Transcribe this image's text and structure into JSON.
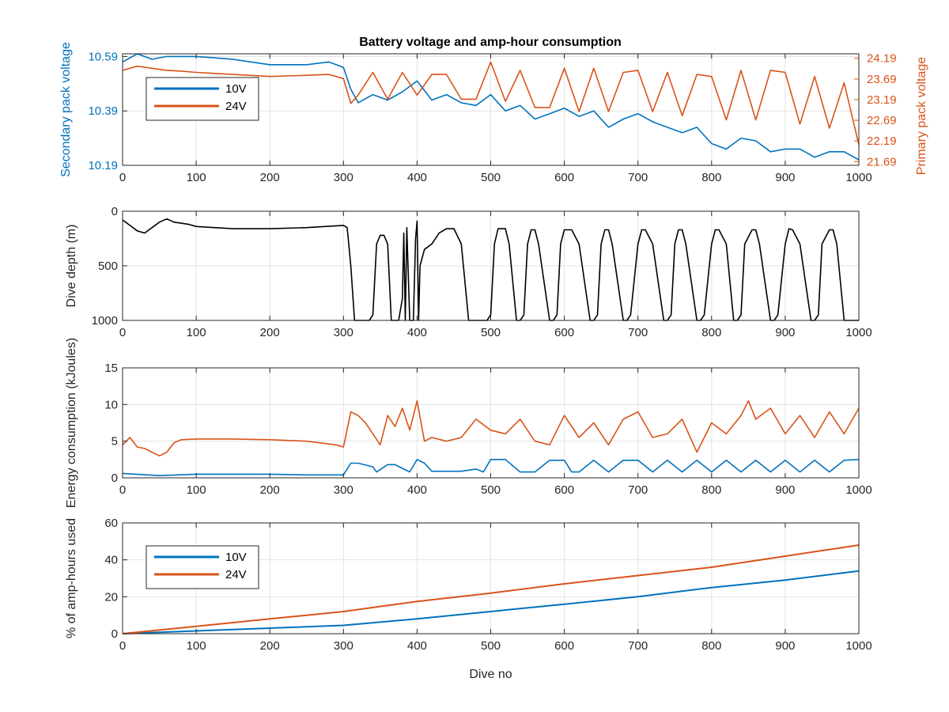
{
  "colors": {
    "v10": "#0072BD",
    "v24": "#D95319",
    "depth": "#000000",
    "grid": "#E3E3E3",
    "axis": "#262626",
    "background": "#FFFFFF"
  },
  "chart_data": [
    {
      "type": "line",
      "title": "Battery voltage and amp-hour consumption",
      "xlabel": "",
      "ylabel": "Secondary pack voltage",
      "ylabel_right": "Primary pack voltage",
      "xlim": [
        0,
        1000
      ],
      "ylim": [
        10.19,
        10.6
      ],
      "ylim_right": [
        21.6,
        24.3
      ],
      "xticks": [
        "0",
        "100",
        "200",
        "300",
        "400",
        "500",
        "600",
        "700",
        "800",
        "900",
        "1000"
      ],
      "yticks_left": [
        "10.19",
        "10.39",
        "10.59"
      ],
      "yticks_right": [
        "21.69",
        "22.19",
        "22.69",
        "23.19",
        "23.69",
        "24.19"
      ],
      "grid": true,
      "legend_position": "top-left",
      "legend": [
        "10V",
        "24V"
      ],
      "series": [
        {
          "name": "10V",
          "axis": "left",
          "x": [
            0,
            20,
            40,
            60,
            80,
            100,
            150,
            200,
            250,
            280,
            300,
            310,
            320,
            340,
            360,
            380,
            400,
            420,
            440,
            460,
            480,
            500,
            520,
            540,
            560,
            580,
            600,
            620,
            640,
            660,
            680,
            700,
            720,
            740,
            760,
            780,
            800,
            820,
            840,
            860,
            880,
            900,
            920,
            940,
            960,
            980,
            1000
          ],
          "y": [
            10.57,
            10.6,
            10.58,
            10.59,
            10.59,
            10.59,
            10.58,
            10.56,
            10.56,
            10.57,
            10.55,
            10.47,
            10.42,
            10.45,
            10.43,
            10.46,
            10.5,
            10.43,
            10.45,
            10.42,
            10.41,
            10.45,
            10.39,
            10.41,
            10.36,
            10.38,
            10.4,
            10.37,
            10.39,
            10.33,
            10.36,
            10.38,
            10.35,
            10.33,
            10.31,
            10.33,
            10.27,
            10.25,
            10.29,
            10.28,
            10.24,
            10.25,
            10.25,
            10.22,
            10.24,
            10.24,
            10.21
          ]
        },
        {
          "name": "24V",
          "axis": "right",
          "x": [
            0,
            20,
            40,
            60,
            80,
            100,
            150,
            200,
            250,
            280,
            300,
            310,
            320,
            340,
            360,
            380,
            400,
            420,
            440,
            460,
            480,
            500,
            520,
            540,
            560,
            580,
            600,
            620,
            640,
            660,
            680,
            700,
            720,
            740,
            760,
            780,
            800,
            820,
            840,
            860,
            880,
            900,
            920,
            940,
            960,
            980,
            1000
          ],
          "y": [
            23.9,
            24.0,
            23.95,
            23.9,
            23.88,
            23.85,
            23.8,
            23.75,
            23.78,
            23.8,
            23.7,
            23.1,
            23.3,
            23.85,
            23.2,
            23.85,
            23.3,
            23.8,
            23.8,
            23.2,
            23.2,
            24.1,
            23.15,
            23.9,
            23.0,
            23.0,
            23.95,
            22.9,
            23.95,
            22.9,
            23.85,
            23.9,
            22.9,
            23.85,
            22.8,
            23.8,
            23.75,
            22.7,
            23.9,
            22.7,
            23.9,
            23.85,
            22.6,
            23.75,
            22.5,
            23.6,
            22.1
          ]
        }
      ]
    },
    {
      "type": "line",
      "title": "",
      "xlabel": "",
      "ylabel": "Dive depth (m)",
      "xlim": [
        0,
        1000
      ],
      "ylim": [
        1000,
        0
      ],
      "y_reversed": true,
      "xticks": [
        "0",
        "100",
        "200",
        "300",
        "400",
        "500",
        "600",
        "700",
        "800",
        "900",
        "1000"
      ],
      "yticks": [
        "0",
        "500",
        "1000"
      ],
      "grid": true,
      "series": [
        {
          "color": "depth",
          "x": [
            0,
            10,
            20,
            30,
            40,
            50,
            60,
            70,
            80,
            90,
            100,
            150,
            200,
            250,
            300,
            305,
            310,
            315,
            320,
            335,
            340,
            345,
            350,
            355,
            360,
            365,
            375,
            380,
            382,
            384,
            386,
            390,
            395,
            398,
            400,
            402,
            404,
            410,
            420,
            430,
            440,
            450,
            460,
            470,
            480,
            495,
            500,
            505,
            510,
            515,
            520,
            525,
            535,
            540,
            545,
            550,
            555,
            560,
            565,
            580,
            585,
            590,
            595,
            600,
            610,
            620,
            635,
            640,
            645,
            650,
            655,
            660,
            665,
            680,
            685,
            690,
            700,
            705,
            710,
            720,
            735,
            740,
            745,
            750,
            755,
            760,
            765,
            780,
            785,
            790,
            800,
            805,
            810,
            820,
            830,
            835,
            840,
            845,
            855,
            860,
            865,
            880,
            885,
            890,
            900,
            905,
            910,
            920,
            935,
            940,
            945,
            950,
            960,
            965,
            970,
            980,
            985,
            990,
            1000
          ],
          "y": [
            80,
            130,
            180,
            200,
            150,
            100,
            70,
            100,
            110,
            120,
            140,
            160,
            160,
            150,
            130,
            150,
            500,
            1000,
            1000,
            1000,
            950,
            300,
            220,
            220,
            300,
            1000,
            1000,
            800,
            200,
            1000,
            150,
            1000,
            1000,
            250,
            90,
            1000,
            500,
            350,
            300,
            200,
            160,
            160,
            300,
            1000,
            1000,
            1000,
            950,
            300,
            160,
            160,
            160,
            300,
            1000,
            1000,
            950,
            300,
            170,
            170,
            300,
            1000,
            1000,
            950,
            300,
            170,
            170,
            300,
            1000,
            1000,
            950,
            300,
            170,
            170,
            300,
            1000,
            1000,
            950,
            300,
            170,
            170,
            300,
            1000,
            1000,
            950,
            300,
            170,
            170,
            300,
            1000,
            1000,
            950,
            300,
            170,
            170,
            300,
            1000,
            1000,
            950,
            300,
            170,
            170,
            300,
            1000,
            1000,
            950,
            300,
            160,
            170,
            300,
            1000,
            1000,
            950,
            300,
            170,
            170,
            300,
            1000,
            1000,
            1000,
            1000
          ]
        }
      ]
    },
    {
      "type": "line",
      "title": "",
      "xlabel": "",
      "ylabel": "Energy consumption (kJoules)",
      "xlim": [
        0,
        1000
      ],
      "ylim": [
        0,
        15
      ],
      "xticks": [
        "0",
        "100",
        "200",
        "300",
        "400",
        "500",
        "600",
        "700",
        "800",
        "900",
        "1000"
      ],
      "yticks": [
        "0",
        "5",
        "10",
        "15"
      ],
      "grid": true,
      "series": [
        {
          "name": "24V",
          "color": "v24",
          "x": [
            0,
            10,
            20,
            30,
            40,
            50,
            60,
            70,
            80,
            100,
            150,
            200,
            250,
            290,
            300,
            310,
            320,
            330,
            340,
            350,
            360,
            370,
            380,
            390,
            400,
            410,
            420,
            440,
            460,
            480,
            500,
            520,
            540,
            560,
            580,
            600,
            620,
            640,
            660,
            680,
            700,
            720,
            740,
            760,
            780,
            800,
            820,
            840,
            850,
            860,
            880,
            900,
            920,
            940,
            960,
            980,
            1000
          ],
          "y": [
            4.5,
            5.5,
            4.2,
            4.0,
            3.5,
            3.0,
            3.5,
            4.8,
            5.2,
            5.3,
            5.3,
            5.2,
            5.0,
            4.5,
            4.2,
            9.0,
            8.5,
            7.5,
            6.0,
            4.5,
            8.5,
            7.0,
            9.5,
            6.5,
            10.5,
            5.0,
            5.5,
            5.0,
            5.5,
            8.0,
            6.5,
            6.0,
            8.0,
            5.0,
            4.5,
            8.5,
            5.5,
            7.5,
            4.5,
            8.0,
            9.0,
            5.5,
            6.0,
            8.0,
            3.5,
            7.5,
            6.0,
            8.5,
            10.5,
            8.0,
            9.5,
            6.0,
            8.5,
            5.5,
            9.0,
            6.0,
            9.5
          ]
        },
        {
          "name": "10V",
          "color": "v10",
          "x": [
            0,
            50,
            100,
            150,
            200,
            250,
            300,
            310,
            320,
            340,
            345,
            360,
            370,
            390,
            400,
            410,
            420,
            440,
            460,
            480,
            490,
            500,
            510,
            520,
            540,
            560,
            580,
            600,
            610,
            620,
            640,
            660,
            680,
            700,
            720,
            740,
            760,
            780,
            800,
            820,
            840,
            860,
            880,
            900,
            920,
            940,
            960,
            980,
            1000
          ],
          "y": [
            0.6,
            0.3,
            0.5,
            0.5,
            0.5,
            0.4,
            0.4,
            2.0,
            2.0,
            1.5,
            0.8,
            1.8,
            1.8,
            0.8,
            2.5,
            2.0,
            0.9,
            0.9,
            0.9,
            1.2,
            0.8,
            2.5,
            2.5,
            2.5,
            0.8,
            0.8,
            2.4,
            2.4,
            0.8,
            0.8,
            2.4,
            0.8,
            2.4,
            2.4,
            0.8,
            2.4,
            0.8,
            2.4,
            0.8,
            2.4,
            0.8,
            2.4,
            0.8,
            2.4,
            0.8,
            2.4,
            0.8,
            2.4,
            2.5
          ]
        }
      ]
    },
    {
      "type": "line",
      "title": "",
      "xlabel": "Dive no",
      "ylabel": "% of amp-hours used",
      "xlim": [
        0,
        1000
      ],
      "ylim": [
        0,
        60
      ],
      "xticks": [
        "0",
        "100",
        "200",
        "300",
        "400",
        "500",
        "600",
        "700",
        "800",
        "900",
        "1000"
      ],
      "yticks": [
        "0",
        "20",
        "40",
        "60"
      ],
      "grid": true,
      "legend_position": "top-left",
      "legend": [
        "10V",
        "24V"
      ],
      "series": [
        {
          "name": "10V",
          "x": [
            0,
            100,
            200,
            300,
            400,
            500,
            600,
            700,
            800,
            900,
            1000
          ],
          "y": [
            0,
            1.5,
            3.0,
            4.5,
            8.0,
            12.0,
            16.0,
            20.0,
            25.0,
            29.0,
            34.0
          ]
        },
        {
          "name": "24V",
          "x": [
            0,
            100,
            200,
            300,
            400,
            500,
            600,
            700,
            800,
            900,
            1000
          ],
          "y": [
            0,
            4.0,
            8.0,
            12.0,
            17.5,
            22.0,
            27.0,
            31.5,
            36.0,
            42.0,
            48.0
          ]
        }
      ]
    }
  ]
}
